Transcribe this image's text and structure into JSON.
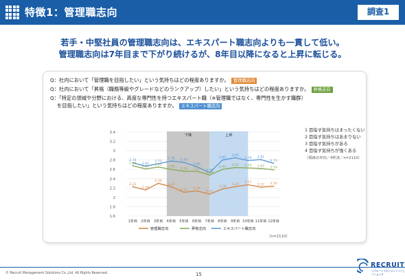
{
  "header": {
    "title": "特徴1：管理職志向",
    "badge": "調査1"
  },
  "headline": {
    "line1": "若手・中堅社員の管理職志向は、エキスパート職志向よりも一貫して低い。",
    "line2": "管理職志向は7年目まで下がり続けるが、8年目以降になると上昇に転じる。"
  },
  "questions": [
    {
      "prefix": "Q：",
      "text": "社内において「管理職を目指したい」という気持ちはどの程度ありますか。",
      "tag": "管理職志向"
    },
    {
      "prefix": "Q：",
      "text": "社内において「昇格（職務等級やグレードなどのランクアップ）したい」という気持ちはどの程度ありますか。",
      "tag": "昇格志向"
    },
    {
      "prefix": "Q：",
      "text": "「特定の領域や分野における、高度な専門性を持つエキスパート職（※管理職ではなく、専門性を生かす職群）",
      "tag": ""
    },
    {
      "prefix": "",
      "text": "を目指したい」という気持ちはどの程度ありますか。",
      "tag": "エキスパート職志向"
    }
  ],
  "scale_legend": {
    "items": [
      "1 目指す気持ちはまったくない",
      "2 目指す気持ちはあまりない",
      "3 目指す気持ちがある",
      "4 目指す気持ちが強くある"
    ],
    "note": "（項目の平均／4件法／n=2110）"
  },
  "n_note": "（n=2110）",
  "chart_data": {
    "type": "line",
    "categories": [
      "1年目",
      "2年目",
      "3年目",
      "4年目",
      "5年目",
      "6年目",
      "7年目",
      "8年目",
      "9年目",
      "10年目",
      "11年目",
      "12年目"
    ],
    "ylim": [
      1.6,
      3.4
    ],
    "yticks": [
      "1.6",
      "1.8",
      "2",
      "2.2",
      "2.4",
      "2.6",
      "2.8",
      "3",
      "3.2",
      "3.4"
    ],
    "grid": true,
    "bands": [
      {
        "label": "下降",
        "from": "4年目",
        "to": "7年目",
        "color": "#bdbdbd"
      },
      {
        "label": "上昇",
        "from": "7年目",
        "to": "10年目",
        "color": "#b9d3ee"
      }
    ],
    "series": [
      {
        "name": "管理職志向",
        "color": "#d4894a",
        "values": [
          2.23,
          2.16,
          2.3,
          2.23,
          2.11,
          2.14,
          2.07,
          2.18,
          2.23,
          2.27,
          2.22,
          2.24
        ]
      },
      {
        "name": "昇格志向",
        "color": "#8aab5a",
        "values": [
          2.68,
          2.61,
          2.65,
          2.6,
          2.56,
          2.56,
          2.48,
          2.6,
          2.64,
          2.63,
          2.62,
          2.59
        ]
      },
      {
        "name": "エキスパート職志向",
        "color": "#5b9bd5",
        "values": [
          2.74,
          2.67,
          2.72,
          2.78,
          2.75,
          2.66,
          2.53,
          2.8,
          2.85,
          2.79,
          2.81,
          2.73
        ]
      }
    ]
  },
  "footer": {
    "copyright": "© Recruit Management Solutions Co.,Ltd. All Rights Reserved.",
    "page": "15",
    "logo_word": "RECRUIT",
    "logo_sub": "リクルートマネジメントソリューションズ"
  },
  "colors": {
    "brand": "#1a5ea8"
  }
}
